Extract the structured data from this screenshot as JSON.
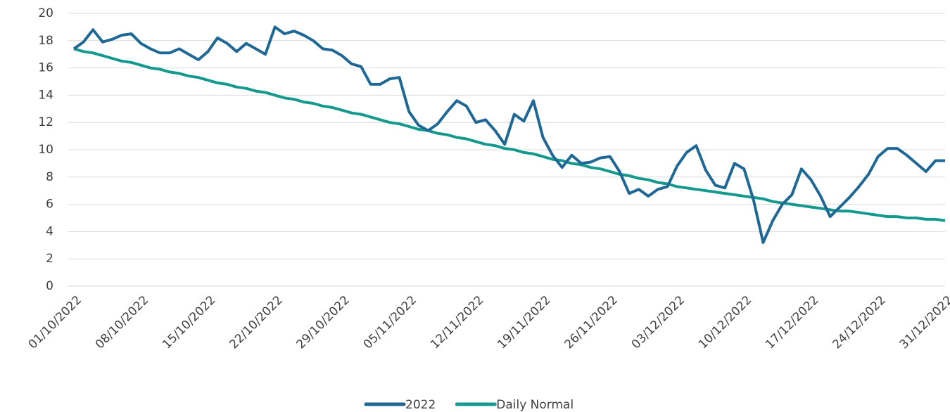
{
  "chart_data": {
    "type": "line",
    "categories": [
      "01/10/2022",
      null,
      null,
      null,
      null,
      null,
      null,
      "08/10/2022",
      null,
      null,
      null,
      null,
      null,
      null,
      "15/10/2022",
      null,
      null,
      null,
      null,
      null,
      null,
      "22/10/2022",
      null,
      null,
      null,
      null,
      null,
      null,
      "29/10/2022",
      null,
      null,
      null,
      null,
      null,
      null,
      "05/11/2022",
      null,
      null,
      null,
      null,
      null,
      null,
      "12/11/2022",
      null,
      null,
      null,
      null,
      null,
      null,
      "19/11/2022",
      null,
      null,
      null,
      null,
      null,
      null,
      "26/11/2022",
      null,
      null,
      null,
      null,
      null,
      null,
      "03/12/2022",
      null,
      null,
      null,
      null,
      null,
      null,
      "10/12/2022",
      null,
      null,
      null,
      null,
      null,
      null,
      "17/12/2022",
      null,
      null,
      null,
      null,
      null,
      null,
      "24/12/2022",
      null,
      null,
      null,
      null,
      null,
      null,
      "31/12/2022"
    ],
    "series": [
      {
        "name": "2022",
        "color": "#1f6896",
        "values": [
          17.4,
          17.9,
          18.8,
          17.9,
          18.1,
          18.4,
          18.5,
          17.8,
          17.4,
          17.1,
          17.1,
          17.4,
          17.0,
          16.6,
          17.2,
          18.2,
          17.8,
          17.2,
          17.8,
          17.4,
          17.0,
          19.0,
          18.5,
          18.7,
          18.4,
          18.0,
          17.4,
          17.3,
          16.9,
          16.3,
          16.1,
          14.8,
          14.8,
          15.2,
          15.3,
          12.8,
          11.8,
          11.4,
          11.9,
          12.8,
          13.6,
          13.2,
          12.0,
          12.2,
          11.4,
          10.4,
          12.6,
          12.1,
          13.6,
          10.9,
          9.6,
          8.7,
          9.6,
          9.0,
          9.1,
          9.4,
          9.5,
          8.4,
          6.8,
          7.1,
          6.6,
          7.1,
          7.3,
          8.8,
          9.8,
          10.3,
          8.5,
          7.4,
          7.2,
          9.0,
          8.6,
          6.3,
          3.2,
          4.8,
          6.0,
          6.7,
          8.6,
          7.8,
          6.6,
          5.1,
          5.8,
          6.5,
          7.3,
          8.2,
          9.5,
          10.1,
          10.1,
          9.6,
          9.0,
          8.4,
          9.2,
          9.2
        ]
      },
      {
        "name": "Daily Normal",
        "color": "#14998f",
        "values": [
          17.4,
          17.2,
          17.1,
          16.9,
          16.7,
          16.5,
          16.4,
          16.2,
          16.0,
          15.9,
          15.7,
          15.6,
          15.4,
          15.3,
          15.1,
          14.9,
          14.8,
          14.6,
          14.5,
          14.3,
          14.2,
          14.0,
          13.8,
          13.7,
          13.5,
          13.4,
          13.2,
          13.1,
          12.9,
          12.7,
          12.6,
          12.4,
          12.2,
          12.0,
          11.9,
          11.7,
          11.5,
          11.4,
          11.2,
          11.1,
          10.9,
          10.8,
          10.6,
          10.4,
          10.3,
          10.1,
          10.0,
          9.8,
          9.7,
          9.5,
          9.3,
          9.2,
          9.0,
          8.9,
          8.7,
          8.6,
          8.4,
          8.2,
          8.1,
          7.9,
          7.8,
          7.6,
          7.5,
          7.3,
          7.2,
          7.1,
          7.0,
          6.9,
          6.8,
          6.7,
          6.6,
          6.5,
          6.4,
          6.2,
          6.1,
          6.0,
          5.9,
          5.8,
          5.7,
          5.6,
          5.5,
          5.5,
          5.4,
          5.3,
          5.2,
          5.1,
          5.1,
          5.0,
          5.0,
          4.9,
          4.9,
          4.8
        ]
      }
    ],
    "ylim": [
      0,
      20
    ],
    "yticks": [
      0,
      2,
      4,
      6,
      8,
      10,
      12,
      14,
      16,
      18,
      20
    ],
    "grid": true,
    "legend": "bottom"
  }
}
